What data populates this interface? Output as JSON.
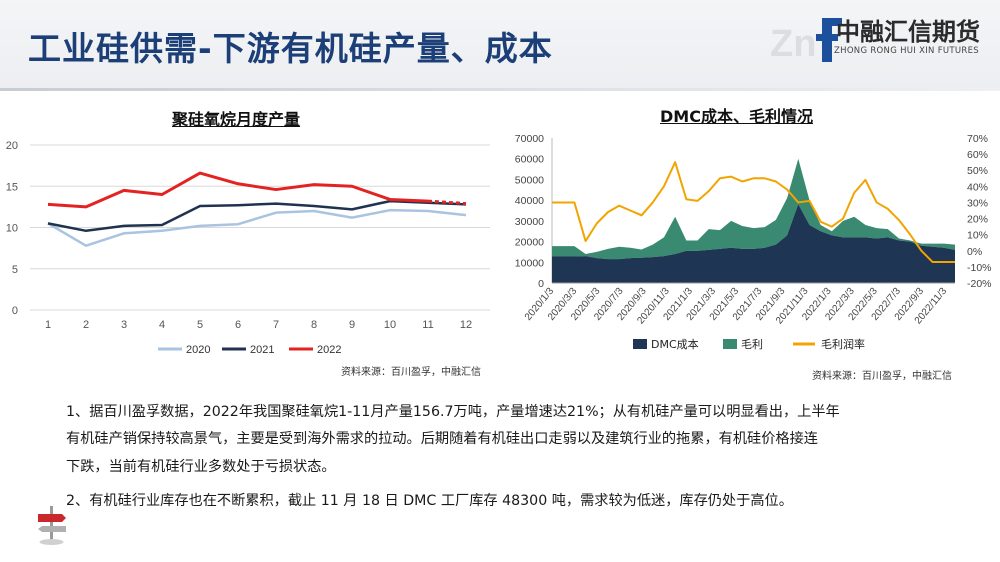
{
  "header": {
    "title": "工业硅供需-下游有机硅产量、成本",
    "logo_cn": "中融汇信期货",
    "logo_en": "ZHONG RONG HUI XIN FUTURES"
  },
  "colors": {
    "title_blue": "#1c3f78",
    "series_2020": "#a9c4e0",
    "series_2021": "#1f3350",
    "series_2022": "#e32222",
    "dmc_cost": "#1e3553",
    "gross_profit": "#3a8a72",
    "margin_rate": "#f2a400"
  },
  "chart_data": [
    {
      "type": "line",
      "title": "聚硅氧烷月度产量",
      "xlabel": "",
      "ylabel": "",
      "x": [
        1,
        2,
        3,
        4,
        5,
        6,
        7,
        8,
        9,
        10,
        11,
        12
      ],
      "ylim": [
        0,
        20
      ],
      "yticks": [
        0,
        5,
        10,
        15,
        20
      ],
      "grid": true,
      "legend": "bottom",
      "series": [
        {
          "name": "2020",
          "values": [
            10.5,
            7.8,
            9.3,
            9.6,
            10.2,
            10.4,
            11.8,
            12.0,
            11.2,
            12.1,
            12.0,
            11.5
          ]
        },
        {
          "name": "2021",
          "values": [
            10.5,
            9.6,
            10.2,
            10.3,
            12.6,
            12.7,
            12.9,
            12.6,
            12.2,
            13.2,
            13.0,
            12.8
          ]
        },
        {
          "name": "2022",
          "values": [
            12.8,
            12.5,
            14.5,
            14.0,
            16.6,
            15.3,
            14.6,
            15.2,
            15.0,
            13.4,
            13.2,
            12.9
          ]
        }
      ],
      "dashed_last_segment": "2022",
      "source": "资料来源：百川盈孚，中融汇信"
    },
    {
      "type": "area",
      "title": "DMC成本、毛利情况",
      "xlabel": "",
      "ylabel": "",
      "ylim": [
        0,
        70000
      ],
      "yticks": [
        0,
        10000,
        20000,
        30000,
        40000,
        50000,
        60000,
        70000
      ],
      "y2lim": [
        -20,
        70
      ],
      "y2ticks": [
        -20,
        -10,
        0,
        10,
        20,
        30,
        40,
        50,
        60,
        70
      ],
      "x_ticks": [
        "2020/1/3",
        "2020/3/3",
        "2020/5/3",
        "2020/7/3",
        "2020/9/3",
        "2020/11/3",
        "2021/1/3",
        "2021/3/3",
        "2021/5/3",
        "2021/7/3",
        "2021/9/3",
        "2021/11/3",
        "2022/1/3",
        "2022/3/3",
        "2022/5/3",
        "2022/7/3",
        "2022/9/3",
        "2022/11/3"
      ],
      "grid": false,
      "legend": "bottom",
      "series": [
        {
          "name": "DMC成本",
          "kind": "area",
          "axis": "left",
          "values": [
            12800,
            12800,
            12800,
            13000,
            12000,
            11500,
            11500,
            12000,
            12200,
            12500,
            13000,
            14000,
            15500,
            15500,
            16000,
            16500,
            17000,
            16500,
            16500,
            17000,
            18500,
            23000,
            38000,
            28000,
            25000,
            23000,
            22000,
            22000,
            22000,
            21500,
            22000,
            20500,
            20000,
            18000,
            17500,
            17000,
            16000
          ]
        },
        {
          "name": "毛利",
          "kind": "stacked-area",
          "axis": "left",
          "values": [
            5000,
            5000,
            5000,
            1000,
            3000,
            5000,
            6000,
            5000,
            4000,
            6000,
            9000,
            18000,
            5000,
            5000,
            10000,
            9000,
            13000,
            11000,
            10000,
            10000,
            12000,
            18000,
            22000,
            12000,
            3000,
            2000,
            8000,
            10000,
            6000,
            5000,
            4000,
            1000,
            500,
            1000,
            1500,
            2000,
            2500
          ]
        },
        {
          "name": "毛利润率",
          "kind": "line",
          "axis": "right",
          "values": [
            30,
            30,
            30,
            6,
            17,
            24,
            28,
            25,
            22,
            30,
            40,
            55,
            32,
            31,
            37,
            45,
            46,
            43,
            45,
            45,
            43,
            38,
            30,
            31,
            18,
            15,
            20,
            36,
            44,
            30,
            26,
            19,
            10,
            0,
            -7,
            -7,
            -7
          ]
        }
      ],
      "source": "资料来源：百川盈孚，中融汇信"
    }
  ],
  "body_text": {
    "p1_line1": "1、据百川盈孚数据，2022年我国聚硅氧烷1-11月产量156.7万吨，产量增速达21%；从有机硅产量可以明显看出，上半年",
    "p1_line2": "有机硅产销保持较高景气，主要是受到海外需求的拉动。后期随着有机硅出口走弱以及建筑行业的拖累，有机硅价格接连",
    "p1_line3": "下跌，当前有机硅行业多数处于亏损状态。",
    "p2": "2、有机硅行业库存也在不断累积，截止 11 月 18 日 DMC 工厂库存 48300 吨，需求较为低迷，库存仍处于高位。"
  }
}
